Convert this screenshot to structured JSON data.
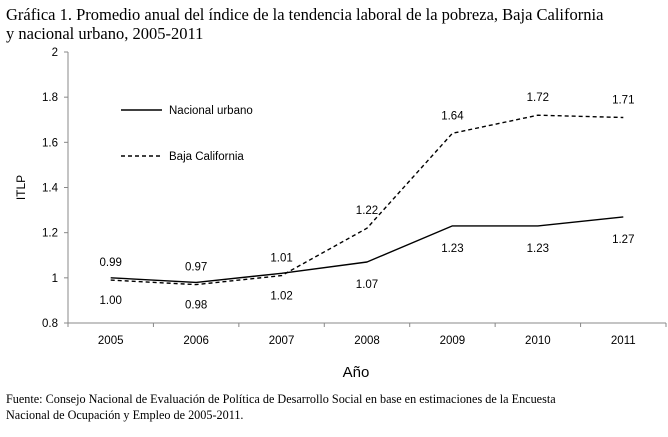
{
  "title_lines": [
    "Gráfica 1. Promedio anual del índice de la tendencia laboral de la pobreza, Baja California",
    "y nacional urbano, 2005-2011"
  ],
  "source_lines": [
    "Fuente: Consejo Nacional de Evaluación de Política de Desarrollo Social en base en estimaciones de la  Encuesta",
    "Nacional de Ocupación y Empleo de 2005-2011."
  ],
  "chart_data": {
    "type": "line",
    "title": "Gráfica 1. Promedio anual del índice de la tendencia laboral de la pobreza, Baja California y nacional urbano, 2005-2011",
    "xlabel": "Año",
    "ylabel": "ITLP",
    "categories": [
      "2005",
      "2006",
      "2007",
      "2008",
      "2009",
      "2010",
      "2011"
    ],
    "ylim": [
      0.8,
      2
    ],
    "yticks": [
      0.8,
      1,
      1.2,
      1.4,
      1.6,
      1.8,
      2
    ],
    "ytick_labels": [
      "0.8",
      "1",
      "1.2",
      "1.4",
      "1.6",
      "1.8",
      "2"
    ],
    "legend_position": "top-left",
    "grid": false,
    "series": [
      {
        "name": "Nacional urbano",
        "style": "solid",
        "values": [
          1.0,
          0.98,
          1.02,
          1.07,
          1.23,
          1.23,
          1.27
        ],
        "labels": [
          "1.00",
          "0.98",
          "1.02",
          "1.07",
          "1.23",
          "1.23",
          "1.27"
        ],
        "label_position": "below"
      },
      {
        "name": "Baja California",
        "style": "dashed",
        "values": [
          0.99,
          0.97,
          1.01,
          1.22,
          1.64,
          1.72,
          1.71
        ],
        "labels": [
          "0.99",
          "0.97",
          "1.01",
          "1.22",
          "1.64",
          "1.72",
          "1.71"
        ],
        "label_position": "above"
      }
    ]
  }
}
